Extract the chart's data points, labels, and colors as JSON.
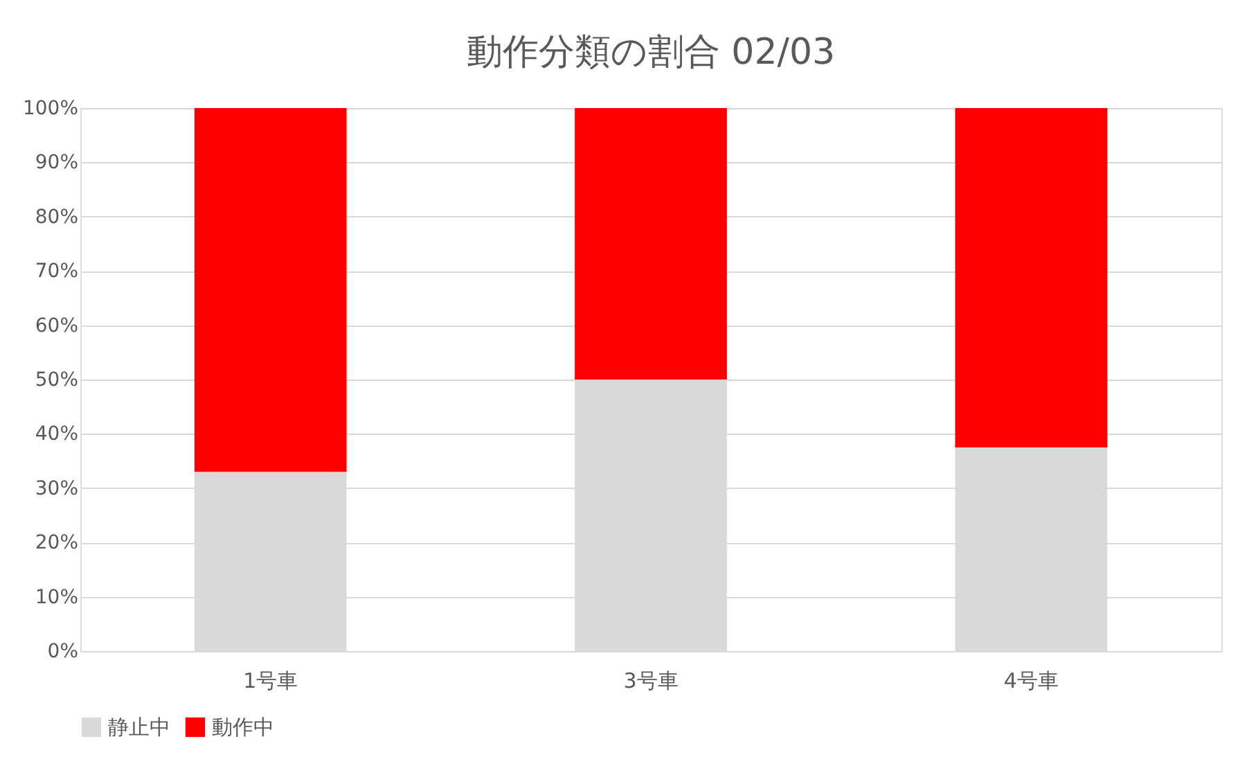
{
  "chart_data": {
    "type": "bar",
    "title": "動作分類の割合 02/03",
    "categories": [
      "1号車",
      "3号車",
      "4号車"
    ],
    "stacked": true,
    "series": [
      {
        "name": "静止中",
        "color": "#d9d9d9",
        "values": [
          33,
          50,
          37.5
        ]
      },
      {
        "name": "動作中",
        "color": "#ff0000",
        "values": [
          67,
          50,
          62.5
        ]
      }
    ],
    "ylim": [
      0,
      100
    ],
    "yticks": [
      {
        "value": 0,
        "label": "0%"
      },
      {
        "value": 10,
        "label": "10%"
      },
      {
        "value": 20,
        "label": "20%"
      },
      {
        "value": 30,
        "label": "30%"
      },
      {
        "value": 40,
        "label": "40%"
      },
      {
        "value": 50,
        "label": "50%"
      },
      {
        "value": 60,
        "label": "60%"
      },
      {
        "value": 70,
        "label": "70%"
      },
      {
        "value": 80,
        "label": "80%"
      },
      {
        "value": 90,
        "label": "90%"
      },
      {
        "value": 100,
        "label": "100%"
      }
    ],
    "grid": "y",
    "legend": "bottom"
  }
}
